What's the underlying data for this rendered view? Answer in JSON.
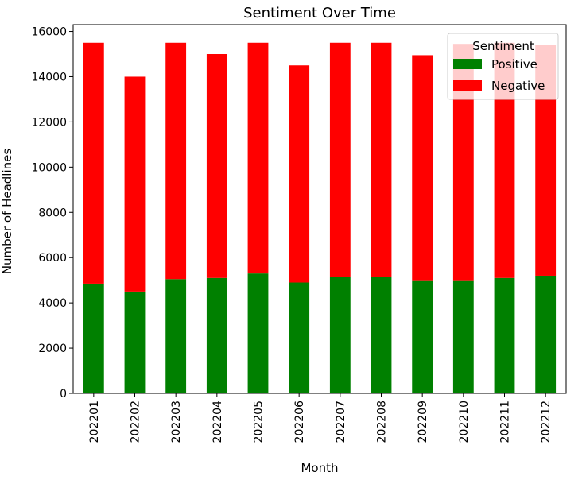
{
  "chart_data": {
    "type": "bar",
    "stacked": true,
    "title": "Sentiment Over Time",
    "xlabel": "Month",
    "ylabel": "Number of Headlines",
    "ylim": [
      0,
      16300
    ],
    "yticks": [
      0,
      2000,
      4000,
      6000,
      8000,
      10000,
      12000,
      14000,
      16000
    ],
    "categories": [
      "202201",
      "202202",
      "202203",
      "202204",
      "202205",
      "202206",
      "202207",
      "202208",
      "202209",
      "202210",
      "202211",
      "202212"
    ],
    "series": [
      {
        "name": "Positive",
        "color": "#008000",
        "values": [
          4850,
          4500,
          5050,
          5100,
          5300,
          4900,
          5150,
          5150,
          5000,
          5000,
          5100,
          5200
        ]
      },
      {
        "name": "Negative",
        "color": "#ff0000",
        "values": [
          10650,
          9500,
          10450,
          9900,
          10200,
          9600,
          10350,
          10350,
          9950,
          10450,
          10400,
          10200
        ]
      }
    ],
    "legend": {
      "title": "Sentiment",
      "position": "top-right"
    }
  }
}
